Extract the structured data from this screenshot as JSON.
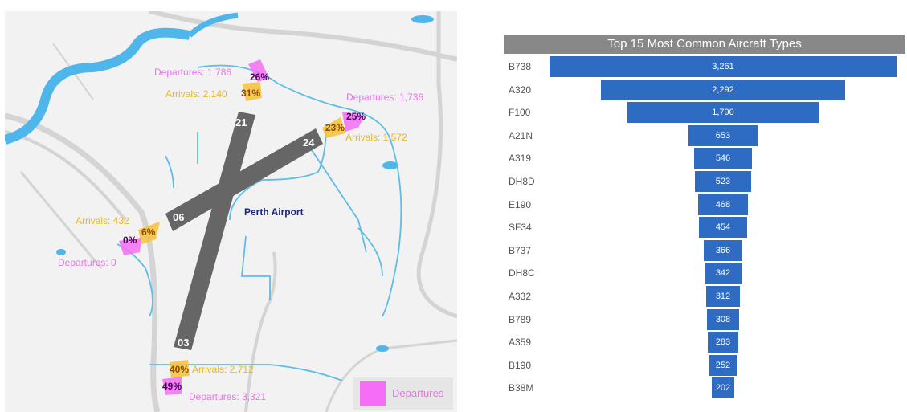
{
  "map": {
    "airport_name": "Perth Airport",
    "runways": [
      "21",
      "24",
      "06",
      "03"
    ],
    "flows": [
      {
        "departures": "Departures: 1,786",
        "arrivals": "Arrivals: 2,140",
        "dep_pct": "26%",
        "arr_pct": "31%"
      },
      {
        "departures": "Departures: 1,736",
        "arrivals": "Arrivals: 1,572",
        "dep_pct": "25%",
        "arr_pct": "23%"
      },
      {
        "departures": "Departures: 0",
        "arrivals": "Arrivals: 432",
        "dep_pct": "0%",
        "arr_pct": "6%"
      },
      {
        "departures": "Departures: 3,321",
        "arrivals": "Arrivals: 2,712",
        "dep_pct": "49%",
        "arr_pct": "40%"
      }
    ],
    "legend_label": "Departures",
    "colors": {
      "departures": "#f56ef5",
      "arrivals": "#f5c542",
      "runway": "#666666",
      "water": "#4fb6ec"
    }
  },
  "chart_data": {
    "type": "bar",
    "title": "Top 15 Most Common Aircraft Types",
    "categories": [
      "B738",
      "A320",
      "F100",
      "A21N",
      "A319",
      "DH8D",
      "E190",
      "SF34",
      "B737",
      "DH8C",
      "A332",
      "B789",
      "A359",
      "B190",
      "B38M"
    ],
    "values": [
      3261,
      2292,
      1790,
      653,
      546,
      523,
      468,
      454,
      366,
      342,
      312,
      308,
      283,
      252,
      202
    ],
    "value_labels": [
      "3,261",
      "2,292",
      "1,790",
      "653",
      "546",
      "523",
      "468",
      "454",
      "366",
      "342",
      "312",
      "308",
      "283",
      "252",
      "202"
    ],
    "bar_color": "#2e6cc4"
  }
}
